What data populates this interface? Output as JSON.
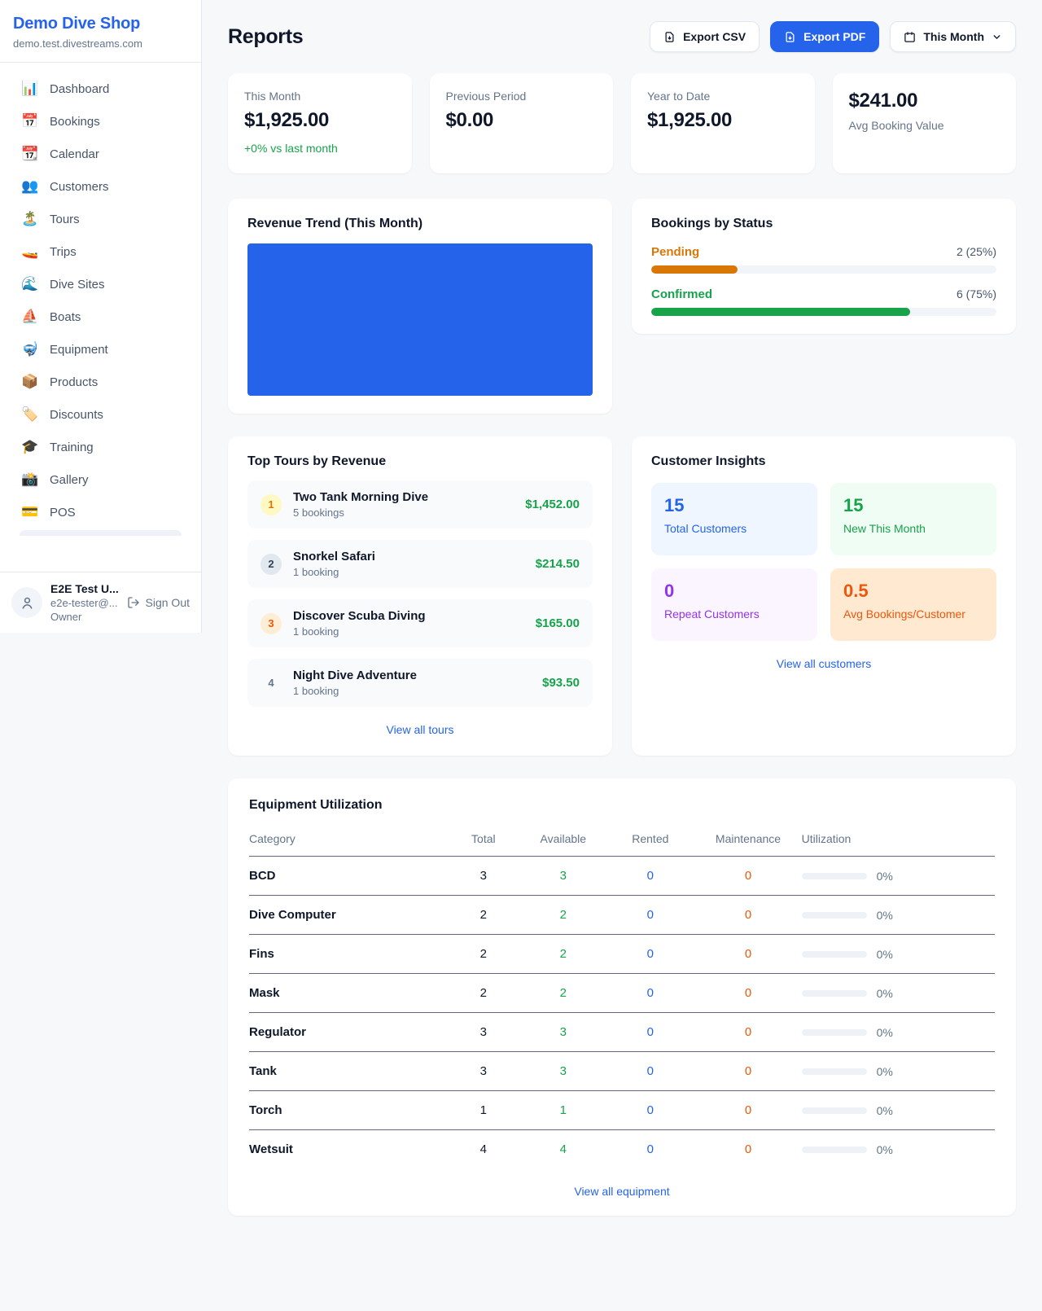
{
  "colors": {
    "accent_blue": "#2563eb",
    "success_green": "#16a34a",
    "pending_amber": "#d97706",
    "maintenance_orange": "#ea580c",
    "repeat_purple": "#9333ea"
  },
  "sidebar": {
    "shop_name": "Demo Dive Shop",
    "shop_domain": "demo.test.divestreams.com",
    "items": [
      {
        "icon": "📊",
        "label": "Dashboard"
      },
      {
        "icon": "📅",
        "label": "Bookings"
      },
      {
        "icon": "📆",
        "label": "Calendar"
      },
      {
        "icon": "👥",
        "label": "Customers"
      },
      {
        "icon": "🏝️",
        "label": "Tours"
      },
      {
        "icon": "🚤",
        "label": "Trips"
      },
      {
        "icon": "🌊",
        "label": "Dive Sites"
      },
      {
        "icon": "⛵",
        "label": "Boats"
      },
      {
        "icon": "🤿",
        "label": "Equipment"
      },
      {
        "icon": "📦",
        "label": "Products"
      },
      {
        "icon": "🏷️",
        "label": "Discounts"
      },
      {
        "icon": "🎓",
        "label": "Training"
      },
      {
        "icon": "📸",
        "label": "Gallery"
      },
      {
        "icon": "💳",
        "label": "POS"
      }
    ],
    "user": {
      "name": "E2E Test U...",
      "email": "e2e-tester@...",
      "role": "Owner",
      "sign_out_label": "Sign Out"
    }
  },
  "header": {
    "title": "Reports",
    "export_csv_label": "Export CSV",
    "export_pdf_label": "Export PDF",
    "period_selected": "This Month"
  },
  "stats": {
    "this_month": {
      "label": "This Month",
      "value": "$1,925.00",
      "delta": "+0% vs last month"
    },
    "previous_period": {
      "label": "Previous Period",
      "value": "$0.00"
    },
    "year_to_date": {
      "label": "Year to Date",
      "value": "$1,925.00"
    },
    "avg_booking": {
      "value": "$241.00",
      "label": "Avg Booking Value"
    }
  },
  "revenue_trend": {
    "title": "Revenue Trend (This Month)",
    "chart_fill_color": "#2563eb"
  },
  "bookings_by_status": {
    "title": "Bookings by Status",
    "rows": [
      {
        "label": "Pending",
        "value_text": "2 (25%)",
        "percent": 25
      },
      {
        "label": "Confirmed",
        "value_text": "6 (75%)",
        "percent": 75
      }
    ]
  },
  "top_tours": {
    "title": "Top Tours by Revenue",
    "view_all_label": "View all tours",
    "rows": [
      {
        "rank": "1",
        "name": "Two Tank Morning Dive",
        "bookings": "5 bookings",
        "revenue": "$1,452.00"
      },
      {
        "rank": "2",
        "name": "Snorkel Safari",
        "bookings": "1 booking",
        "revenue": "$214.50"
      },
      {
        "rank": "3",
        "name": "Discover Scuba Diving",
        "bookings": "1 booking",
        "revenue": "$165.00"
      },
      {
        "rank": "4",
        "name": "Night Dive Adventure",
        "bookings": "1 booking",
        "revenue": "$93.50"
      }
    ]
  },
  "customer_insights": {
    "title": "Customer Insights",
    "view_all_label": "View all customers",
    "tiles": [
      {
        "value": "15",
        "label": "Total Customers"
      },
      {
        "value": "15",
        "label": "New This Month"
      },
      {
        "value": "0",
        "label": "Repeat Customers"
      },
      {
        "value": "0.5",
        "label": "Avg Bookings/Customer"
      }
    ]
  },
  "equipment": {
    "title": "Equipment Utilization",
    "view_all_label": "View all equipment",
    "columns": [
      "Category",
      "Total",
      "Available",
      "Rented",
      "Maintenance",
      "Utilization"
    ],
    "rows": [
      {
        "category": "BCD",
        "total": "3",
        "available": "3",
        "rented": "0",
        "maintenance": "0",
        "utilization_text": "0%",
        "utilization_percent": 0
      },
      {
        "category": "Dive Computer",
        "total": "2",
        "available": "2",
        "rented": "0",
        "maintenance": "0",
        "utilization_text": "0%",
        "utilization_percent": 0
      },
      {
        "category": "Fins",
        "total": "2",
        "available": "2",
        "rented": "0",
        "maintenance": "0",
        "utilization_text": "0%",
        "utilization_percent": 0
      },
      {
        "category": "Mask",
        "total": "2",
        "available": "2",
        "rented": "0",
        "maintenance": "0",
        "utilization_text": "0%",
        "utilization_percent": 0
      },
      {
        "category": "Regulator",
        "total": "3",
        "available": "3",
        "rented": "0",
        "maintenance": "0",
        "utilization_text": "0%",
        "utilization_percent": 0
      },
      {
        "category": "Tank",
        "total": "3",
        "available": "3",
        "rented": "0",
        "maintenance": "0",
        "utilization_text": "0%",
        "utilization_percent": 0
      },
      {
        "category": "Torch",
        "total": "1",
        "available": "1",
        "rented": "0",
        "maintenance": "0",
        "utilization_text": "0%",
        "utilization_percent": 0
      },
      {
        "category": "Wetsuit",
        "total": "4",
        "available": "4",
        "rented": "0",
        "maintenance": "0",
        "utilization_text": "0%",
        "utilization_percent": 0
      }
    ]
  }
}
